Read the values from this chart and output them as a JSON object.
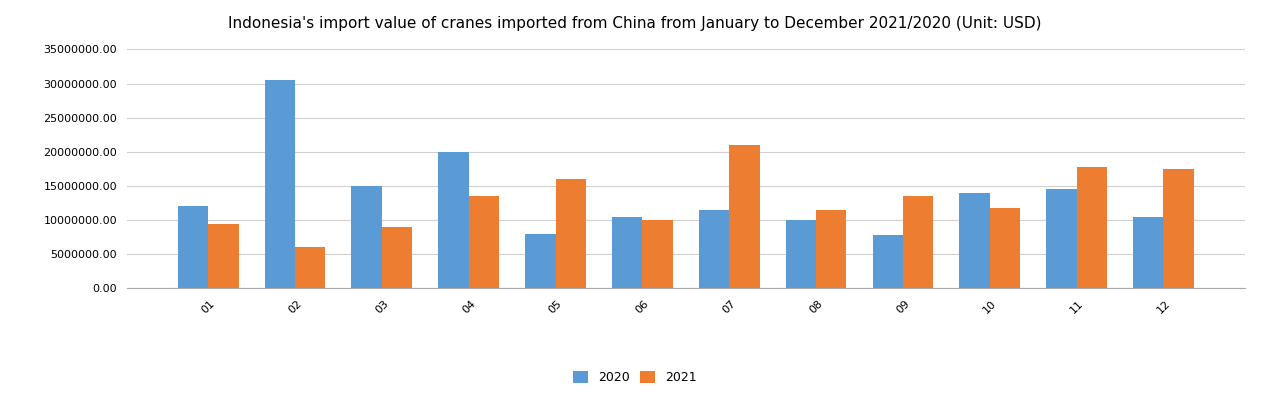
{
  "title": "Indonesia's import value of cranes imported from China from January to December 2021/2020 (Unit: USD)",
  "months": [
    "01",
    "02",
    "03",
    "04",
    "05",
    "06",
    "07",
    "08",
    "09",
    "10",
    "11",
    "12"
  ],
  "values_2020": [
    12000000,
    30500000,
    15000000,
    20000000,
    8000000,
    10500000,
    11500000,
    10000000,
    7800000,
    14000000,
    14500000,
    10500000
  ],
  "values_2021": [
    9500000,
    6000000,
    9000000,
    13500000,
    16000000,
    10000000,
    21000000,
    11500000,
    13500000,
    11800000,
    17800000,
    17500000
  ],
  "color_2020": "#5B9BD5",
  "color_2021": "#ED7D31",
  "legend_labels": [
    "2020",
    "2021"
  ],
  "ylim": [
    0,
    35000000
  ],
  "yticks": [
    0,
    5000000,
    10000000,
    15000000,
    20000000,
    25000000,
    30000000,
    35000000
  ],
  "background_color": "#ffffff",
  "grid_color": "#d0d0d0",
  "title_fontsize": 11,
  "tick_fontsize": 8,
  "legend_fontsize": 9
}
